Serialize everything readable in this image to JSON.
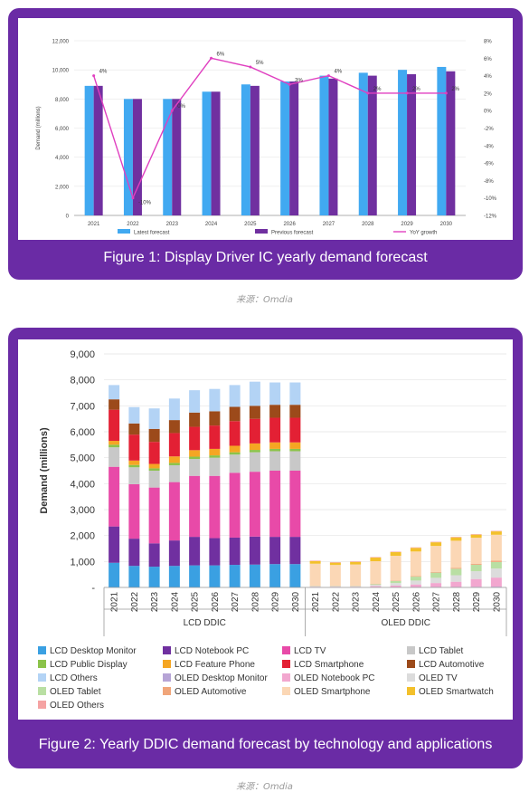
{
  "figure1": {
    "caption": "Figure 1: Display Driver IC yearly demand forecast",
    "source": "来源：Omdia",
    "chart_data": {
      "type": "bar",
      "categories": [
        "2021",
        "2022",
        "2023",
        "2024",
        "2025",
        "2026",
        "2027",
        "2028",
        "2029",
        "2030"
      ],
      "ylabel": "Demand (millions)",
      "ylim": [
        0,
        12000
      ],
      "y_ticks": [
        "0",
        "2,000",
        "4,000",
        "6,000",
        "8,000",
        "10,000",
        "12,000"
      ],
      "y2lim": [
        -12,
        8
      ],
      "y2_ticks": [
        "8%",
        "6%",
        "4%",
        "2%",
        "0%",
        "-2%",
        "-4%",
        "-6%",
        "-8%",
        "-10%",
        "-12%"
      ],
      "legend_position": "bottom",
      "series": [
        {
          "name": "Latest forecast",
          "type": "bar",
          "color": "#41a9f1",
          "values": [
            8900,
            8000,
            8000,
            8500,
            9000,
            9200,
            9600,
            9800,
            10000,
            10200
          ]
        },
        {
          "name": "Previous forecast",
          "type": "bar",
          "color": "#7030a0",
          "values": [
            8900,
            8000,
            8000,
            8500,
            8900,
            9200,
            9400,
            9600,
            9700,
            9900
          ]
        },
        {
          "name": "YoY growth",
          "type": "line",
          "axis": "right",
          "color": "#e040c0",
          "values": [
            4,
            -10,
            0,
            6,
            5,
            3,
            4,
            2,
            2,
            2
          ],
          "labels": [
            "4%",
            "-10%",
            "0%",
            "6%",
            "5%",
            "3%",
            "4%",
            "2%",
            "2%",
            "2%"
          ]
        }
      ]
    }
  },
  "figure2": {
    "caption": "Figure 2: Yearly DDIC demand forecast by technology and applications",
    "source": "来源：Omdia",
    "chart_data": {
      "type": "bar",
      "stacked": true,
      "ylabel": "Demand (millions)",
      "ylim": [
        0,
        9000
      ],
      "y_ticks": [
        "-",
        "1,000",
        "2,000",
        "3,000",
        "4,000",
        "5,000",
        "6,000",
        "7,000",
        "8,000",
        "9,000"
      ],
      "groups": [
        {
          "name": "LCD DDIC",
          "categories": [
            "2021",
            "2022",
            "2023",
            "2024",
            "2025",
            "2026",
            "2027",
            "2028",
            "2029",
            "2030"
          ]
        },
        {
          "name": "OLED DDIC",
          "categories": [
            "2021",
            "2022",
            "2023",
            "2024",
            "2025",
            "2026",
            "2027",
            "2028",
            "2029",
            "2030"
          ]
        }
      ],
      "legend_position": "bottom",
      "lcd_series": [
        {
          "name": "LCD Desktop Monitor",
          "color": "#3aa0e2",
          "values": [
            950,
            830,
            800,
            830,
            850,
            850,
            870,
            880,
            900,
            900
          ]
        },
        {
          "name": "LCD Notebook PC",
          "color": "#7030a0",
          "values": [
            1400,
            1050,
            900,
            980,
            1100,
            1050,
            1050,
            1080,
            1050,
            1050
          ]
        },
        {
          "name": "LCD TV",
          "color": "#e84aa8",
          "values": [
            2300,
            2100,
            2150,
            2250,
            2350,
            2400,
            2500,
            2500,
            2550,
            2550
          ]
        },
        {
          "name": "LCD Tablet",
          "color": "#c8c8c8",
          "values": [
            750,
            650,
            650,
            650,
            650,
            700,
            700,
            750,
            750,
            750
          ]
        },
        {
          "name": "LCD Public Display",
          "color": "#8bc34a",
          "values": [
            100,
            90,
            90,
            90,
            90,
            90,
            90,
            90,
            90,
            90
          ]
        },
        {
          "name": "LCD Feature Phone",
          "color": "#f5a623",
          "values": [
            150,
            170,
            170,
            250,
            250,
            250,
            250,
            250,
            250,
            250
          ]
        },
        {
          "name": "LCD Smartphone",
          "color": "#e32034",
          "values": [
            1200,
            1000,
            850,
            900,
            900,
            900,
            950,
            950,
            950,
            950
          ]
        },
        {
          "name": "LCD Automotive",
          "color": "#9c4a1a",
          "values": [
            400,
            430,
            500,
            500,
            550,
            550,
            550,
            500,
            500,
            500
          ]
        },
        {
          "name": "LCD Others",
          "color": "#b3d3f5",
          "values": [
            550,
            630,
            790,
            830,
            860,
            860,
            840,
            930,
            860,
            860
          ]
        }
      ],
      "oled_series": [
        {
          "name": "OLED Desktop Monitor",
          "color": "#b6a4d6",
          "values": [
            5,
            5,
            5,
            10,
            10,
            15,
            20,
            20,
            25,
            30
          ]
        },
        {
          "name": "OLED Notebook PC",
          "color": "#f2a7cf",
          "values": [
            20,
            20,
            20,
            40,
            60,
            100,
            150,
            200,
            300,
            350
          ]
        },
        {
          "name": "OLED TV",
          "color": "#dcdcdc",
          "values": [
            20,
            20,
            20,
            50,
            100,
            150,
            200,
            250,
            300,
            350
          ]
        },
        {
          "name": "OLED Tablet",
          "color": "#b9dfa3",
          "values": [
            10,
            10,
            10,
            30,
            80,
            150,
            200,
            250,
            250,
            250
          ]
        },
        {
          "name": "OLED Automotive",
          "color": "#f0a57a",
          "values": [
            10,
            10,
            10,
            10,
            20,
            20,
            30,
            30,
            40,
            50
          ]
        },
        {
          "name": "OLED Smartphone",
          "color": "#fbd7b5",
          "values": [
            850,
            800,
            820,
            870,
            950,
            950,
            1000,
            1050,
            1000,
            1000
          ]
        },
        {
          "name": "OLED Smartwatch",
          "color": "#f3c02b",
          "values": [
            100,
            90,
            100,
            140,
            140,
            140,
            140,
            130,
            120,
            130
          ]
        },
        {
          "name": "OLED Others",
          "color": "#f5a3a3",
          "values": [
            20,
            20,
            20,
            20,
            20,
            20,
            20,
            20,
            20,
            20
          ]
        }
      ]
    }
  }
}
